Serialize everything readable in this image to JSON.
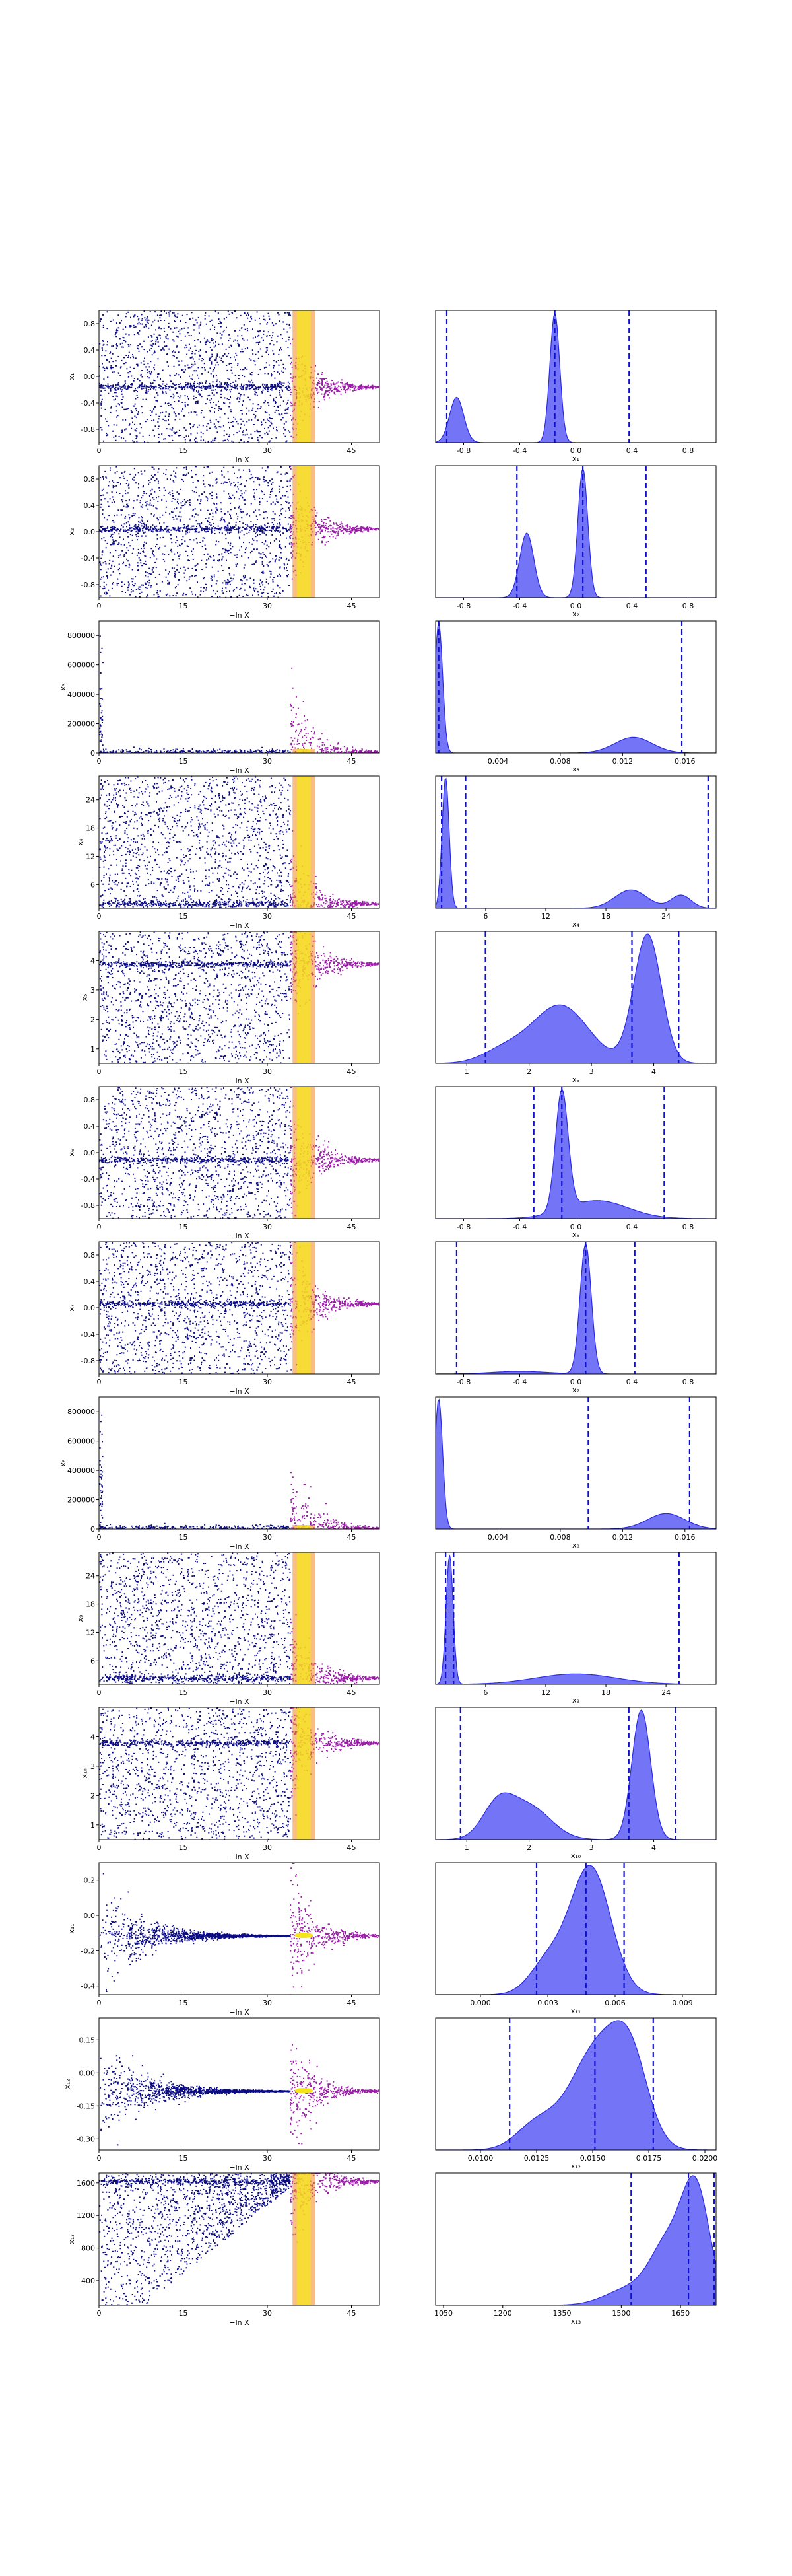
{
  "chart_data": {
    "type": "scatter",
    "layout": "runplot-trace",
    "trace_xlabel": "−ln X",
    "trace_xticks": [
      0,
      15,
      30,
      45
    ],
    "trace_xlim": [
      0,
      50
    ],
    "colors": {
      "trace_point": "#0b0b86",
      "band_purple": "#9a1ba8",
      "band_orange": "#f4881f",
      "band_yellow": "#f4e51b",
      "kde_fill": "#5c5cf4",
      "kde_line": "#2a2ae6",
      "quantile_line": "#1010d0"
    },
    "panels": [
      {
        "param": "x1",
        "ylabel": "x₁",
        "yticks": [
          "-0.8",
          "-0.4",
          "0.0",
          "0.4",
          "0.8"
        ],
        "ylim": [
          -1,
          1
        ],
        "hist_xlabel": "x₁",
        "hist_xlim": [
          -1,
          1
        ],
        "hist_xticks": [
          "-0.8",
          "-0.4",
          "0.0",
          "0.4",
          "0.8"
        ],
        "quantiles": [
          -0.92,
          -0.15,
          0.38
        ],
        "posterior": [
          [
            -0.85,
            0.35,
            0.05
          ],
          [
            -0.15,
            1.0,
            0.035
          ]
        ]
      },
      {
        "param": "x2",
        "ylabel": "x₂",
        "yticks": [
          "-0.8",
          "-0.4",
          "0.0",
          "0.4",
          "0.8"
        ],
        "ylim": [
          -1,
          1
        ],
        "hist_xlabel": "x₂",
        "hist_xlim": [
          -1,
          1
        ],
        "hist_xticks": [
          "-0.8",
          "-0.4",
          "0.0",
          "0.4",
          "0.8"
        ],
        "quantiles": [
          -0.42,
          0.05,
          0.5
        ],
        "posterior": [
          [
            -0.35,
            0.5,
            0.05
          ],
          [
            0.05,
            1.0,
            0.035
          ]
        ]
      },
      {
        "param": "x3",
        "ylabel": "x₃",
        "yticks": [
          "0",
          "200000",
          "400000",
          "600000",
          "800000"
        ],
        "ylim": [
          0,
          900000
        ],
        "hist_xlabel": "x₃",
        "hist_xlim": [
          0,
          0.018
        ],
        "hist_xticks": [
          "0.004",
          "0.008",
          "0.012",
          "0.016"
        ],
        "quantiles": [
          0.0002,
          0.0158
        ],
        "posterior": [
          [
            0.0002,
            1.0,
            0.00025
          ],
          [
            0.0127,
            0.12,
            0.0012
          ]
        ]
      },
      {
        "param": "x4",
        "ylabel": "x₄",
        "yticks": [
          "6",
          "12",
          "18",
          "24"
        ],
        "ylim": [
          1,
          29
        ],
        "hist_xlabel": "x₄",
        "hist_xlim": [
          1,
          29
        ],
        "hist_xticks": [
          "6",
          "12",
          "18",
          "24"
        ],
        "quantiles": [
          1.6,
          4.0,
          28.2
        ],
        "posterior": [
          [
            2.0,
            1.0,
            0.35
          ],
          [
            20.5,
            0.14,
            1.6
          ],
          [
            25.5,
            0.1,
            1.0
          ]
        ]
      },
      {
        "param": "x5",
        "ylabel": "x₅",
        "yticks": [
          "1",
          "2",
          "3",
          "4"
        ],
        "ylim": [
          0.5,
          5
        ],
        "hist_xlabel": "x₅",
        "hist_xlim": [
          0.5,
          5
        ],
        "hist_xticks": [
          "1",
          "2",
          "3",
          "4"
        ],
        "quantiles": [
          1.3,
          3.65,
          4.4
        ],
        "posterior": [
          [
            2.5,
            0.45,
            0.45
          ],
          [
            3.9,
            1.0,
            0.22
          ],
          [
            1.6,
            0.1,
            0.35
          ]
        ]
      },
      {
        "param": "x6",
        "ylabel": "x₆",
        "yticks": [
          "-0.8",
          "-0.4",
          "0.0",
          "0.4",
          "0.8"
        ],
        "ylim": [
          -1,
          1
        ],
        "hist_xlabel": "x₆",
        "hist_xlim": [
          -1,
          1
        ],
        "hist_xticks": [
          "-0.8",
          "-0.4",
          "0.0",
          "0.4",
          "0.8"
        ],
        "quantiles": [
          -0.3,
          -0.1,
          0.63
        ],
        "posterior": [
          [
            -0.1,
            1.0,
            0.045
          ],
          [
            0.15,
            0.15,
            0.22
          ]
        ]
      },
      {
        "param": "x7",
        "ylabel": "x₇",
        "yticks": [
          "-0.8",
          "-0.4",
          "0.0",
          "0.4",
          "0.8"
        ],
        "ylim": [
          -1,
          1
        ],
        "hist_xlabel": "x₇",
        "hist_xlim": [
          -1,
          1
        ],
        "hist_xticks": [
          "-0.8",
          "-0.4",
          "0.0",
          "0.4",
          "0.8"
        ],
        "quantiles": [
          -0.85,
          0.07,
          0.42
        ],
        "posterior": [
          [
            0.07,
            1.0,
            0.04
          ],
          [
            -0.4,
            0.02,
            0.2
          ]
        ]
      },
      {
        "param": "x8",
        "ylabel": "x₈",
        "yticks": [
          "0",
          "200000",
          "400000",
          "600000",
          "800000"
        ],
        "ylim": [
          0,
          900000
        ],
        "hist_xlabel": "x₈",
        "hist_xlim": [
          0,
          0.018
        ],
        "hist_xticks": [
          "0.004",
          "0.008",
          "0.012",
          "0.016"
        ],
        "quantiles": [
          0.0098,
          0.0163
        ],
        "posterior": [
          [
            0.0002,
            1.0,
            0.00025
          ],
          [
            0.0148,
            0.12,
            0.0012
          ]
        ]
      },
      {
        "param": "x9",
        "ylabel": "x₉",
        "yticks": [
          "6",
          "12",
          "18",
          "24"
        ],
        "ylim": [
          1,
          29
        ],
        "hist_xlabel": "x₉",
        "hist_xlim": [
          1,
          29
        ],
        "hist_xticks": [
          "6",
          "12",
          "18",
          "24"
        ],
        "quantiles": [
          2.0,
          2.8,
          25.3
        ],
        "posterior": [
          [
            2.4,
            1.0,
            0.35
          ],
          [
            15,
            0.08,
            4
          ]
        ]
      },
      {
        "param": "x10",
        "ylabel": "x₁₀",
        "yticks": [
          "1",
          "2",
          "3",
          "4"
        ],
        "ylim": [
          0.5,
          5
        ],
        "hist_xlabel": "x₁₀",
        "hist_xlim": [
          0.5,
          5
        ],
        "hist_xticks": [
          "1",
          "2",
          "3",
          "4"
        ],
        "quantiles": [
          0.9,
          3.6,
          4.35
        ],
        "posterior": [
          [
            1.5,
            0.25,
            0.25
          ],
          [
            2.0,
            0.25,
            0.35
          ],
          [
            3.8,
            1.0,
            0.15
          ]
        ]
      },
      {
        "param": "x11",
        "ylabel": "x₁₁",
        "yticks": [
          "-0.4",
          "-0.2",
          "0.0",
          "0.2"
        ],
        "ylim": [
          -0.45,
          0.3
        ],
        "hist_xlabel": "x₁₁",
        "hist_xlim": [
          -0.002,
          0.0105
        ],
        "hist_xticks": [
          "0.000",
          "0.003",
          "0.006",
          "0.009"
        ],
        "quantiles": [
          0.0025,
          0.0047,
          0.0064
        ],
        "posterior": [
          [
            0.0049,
            1.0,
            0.0009
          ],
          [
            0.003,
            0.25,
            0.0008
          ]
        ]
      },
      {
        "param": "x12",
        "ylabel": "x₁₂",
        "yticks": [
          "-0.30",
          "-0.15",
          "0.00",
          "0.15"
        ],
        "ylim": [
          -0.35,
          0.25
        ],
        "hist_xlabel": "x₁₂",
        "hist_xlim": [
          0.008,
          0.0205
        ],
        "hist_xticks": [
          "0.0100",
          "0.0125",
          "0.0150",
          "0.0175",
          "0.0200"
        ],
        "quantiles": [
          0.0113,
          0.0151,
          0.0177
        ],
        "posterior": [
          [
            0.0152,
            1.0,
            0.0012
          ],
          [
            0.0167,
            0.7,
            0.0008
          ],
          [
            0.0125,
            0.25,
            0.0009
          ]
        ]
      },
      {
        "param": "x13",
        "ylabel": "x₁₃",
        "yticks": [
          "400",
          "800",
          "1200",
          "1600"
        ],
        "ylim": [
          100,
          1720
        ],
        "hist_xlabel": "x₁₃",
        "hist_xlim": [
          1030,
          1740
        ],
        "hist_xticks": [
          "1050",
          "1200",
          "1350",
          "1500",
          "1650"
        ],
        "quantiles": [
          1525,
          1670,
          1735
        ],
        "posterior": [
          [
            1690,
            1.0,
            35
          ],
          [
            1620,
            0.55,
            45
          ],
          [
            1520,
            0.15,
            60
          ]
        ]
      }
    ]
  }
}
